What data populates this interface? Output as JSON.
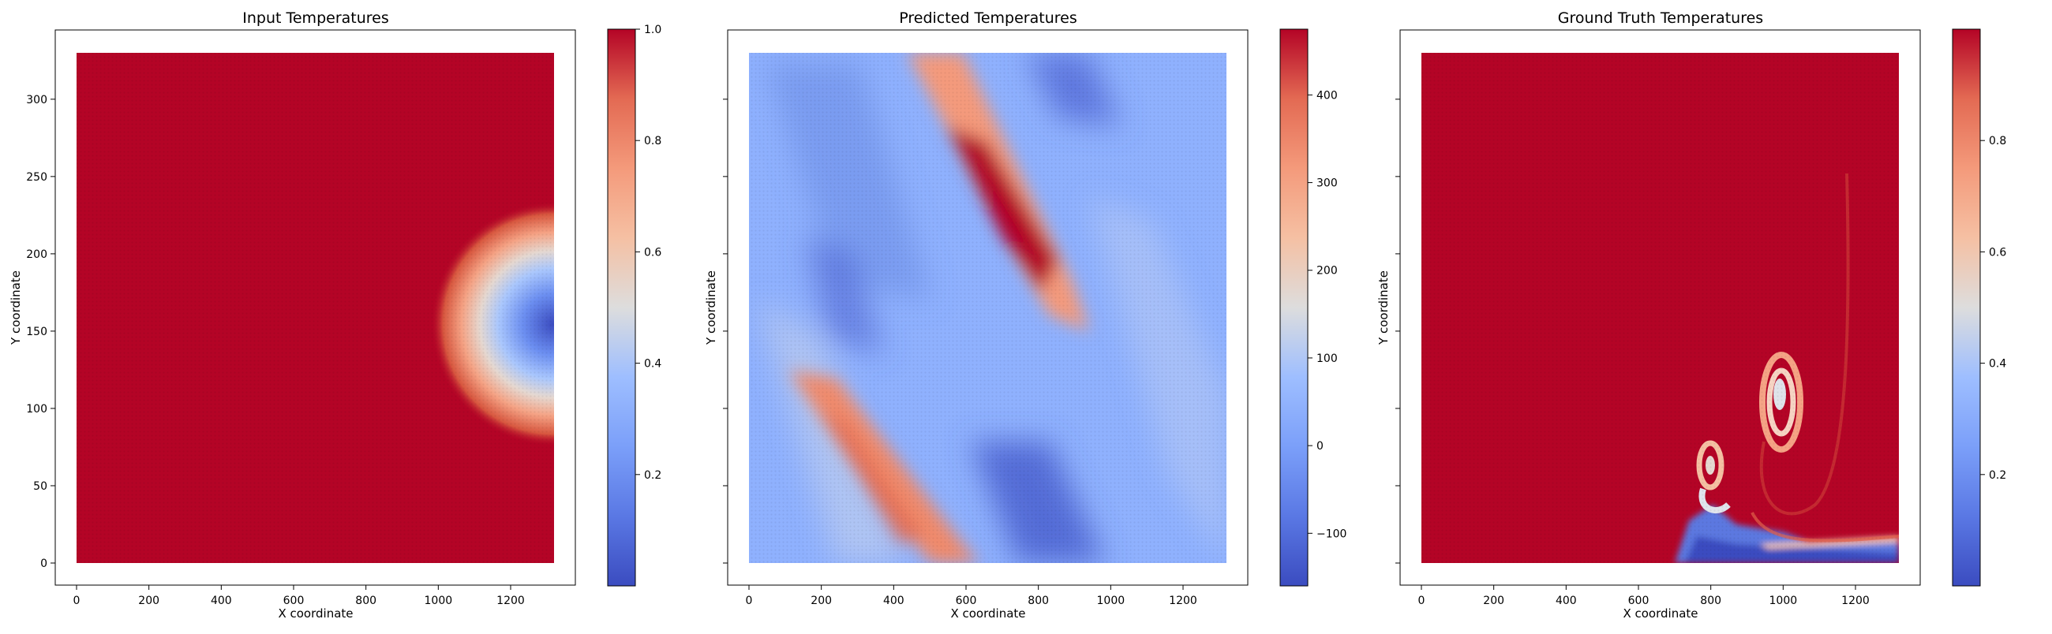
{
  "chart_data": [
    {
      "type": "heatmap",
      "title": "Input Temperatures",
      "xlabel": "X coordinate",
      "ylabel": "Y coordinate",
      "xlim": [
        0,
        1320
      ],
      "ylim": [
        0,
        330
      ],
      "x_ticks": [
        "0",
        "200",
        "400",
        "600",
        "800",
        "1000",
        "1200"
      ],
      "y_ticks": [
        "0",
        "50",
        "100",
        "150",
        "200",
        "250",
        "300"
      ],
      "colormap": "coolwarm",
      "colorbar": {
        "min": 0.0,
        "max": 1.0,
        "ticks": [
          "0.2",
          "0.4",
          "0.6",
          "0.8",
          "1.0"
        ],
        "tick_values": [
          0.2,
          0.4,
          0.6,
          0.8,
          1.0
        ]
      },
      "features": [
        {
          "kind": "background",
          "value": 1.0
        },
        {
          "kind": "cold_blob",
          "center": [
            1320,
            150
          ],
          "radius": 340,
          "min_value": 0.02,
          "description_value": "cold spot at right edge"
        }
      ]
    },
    {
      "type": "heatmap",
      "title": "Predicted Temperatures",
      "xlabel": "X coordinate",
      "ylabel": "Y coordinate",
      "xlim": [
        0,
        1320
      ],
      "ylim": [
        0,
        330
      ],
      "x_ticks": [
        "0",
        "200",
        "400",
        "600",
        "800",
        "1000",
        "1200"
      ],
      "y_ticks": [],
      "colormap": "coolwarm",
      "colorbar": {
        "min": -160,
        "max": 475,
        "ticks": [
          "−100",
          "0",
          "100",
          "200",
          "300",
          "400"
        ],
        "tick_values": [
          -100,
          0,
          100,
          200,
          300,
          400
        ]
      },
      "features": [
        {
          "kind": "warm_band",
          "from": [
            700,
            320
          ],
          "to": [
            900,
            150
          ],
          "peak": 470
        },
        {
          "kind": "warm_band",
          "from": [
            150,
            120
          ],
          "to": [
            600,
            10
          ],
          "peak": 330
        },
        {
          "kind": "cold_band",
          "from": [
            780,
            330
          ],
          "to": [
            950,
            220
          ],
          "peak": -120
        },
        {
          "kind": "cold_band",
          "from": [
            250,
            220
          ],
          "to": [
            300,
            160
          ],
          "peak": -90
        },
        {
          "kind": "cold_band",
          "from": [
            600,
            60
          ],
          "to": [
            900,
            0
          ],
          "peak": -140
        }
      ]
    },
    {
      "type": "heatmap",
      "title": "Ground Truth Temperatures",
      "xlabel": "X coordinate",
      "ylabel": "Y coordinate",
      "xlim": [
        0,
        1320
      ],
      "ylim": [
        0,
        330
      ],
      "x_ticks": [
        "0",
        "200",
        "400",
        "600",
        "800",
        "1000",
        "1200"
      ],
      "y_ticks": [],
      "colormap": "coolwarm",
      "colorbar": {
        "min": 0.0,
        "max": 1.0,
        "ticks": [
          "0.2",
          "0.4",
          "0.6",
          "0.8"
        ],
        "tick_values": [
          0.2,
          0.4,
          0.6,
          0.8
        ]
      },
      "features": [
        {
          "kind": "background",
          "value": 1.0
        },
        {
          "kind": "spiral",
          "center": [
            990,
            110
          ],
          "radius": 55
        },
        {
          "kind": "small_vortex",
          "center": [
            800,
            65
          ],
          "radius": 22
        },
        {
          "kind": "cold_layer",
          "x_range": [
            700,
            1320
          ],
          "y_range": [
            0,
            25
          ]
        }
      ]
    }
  ]
}
